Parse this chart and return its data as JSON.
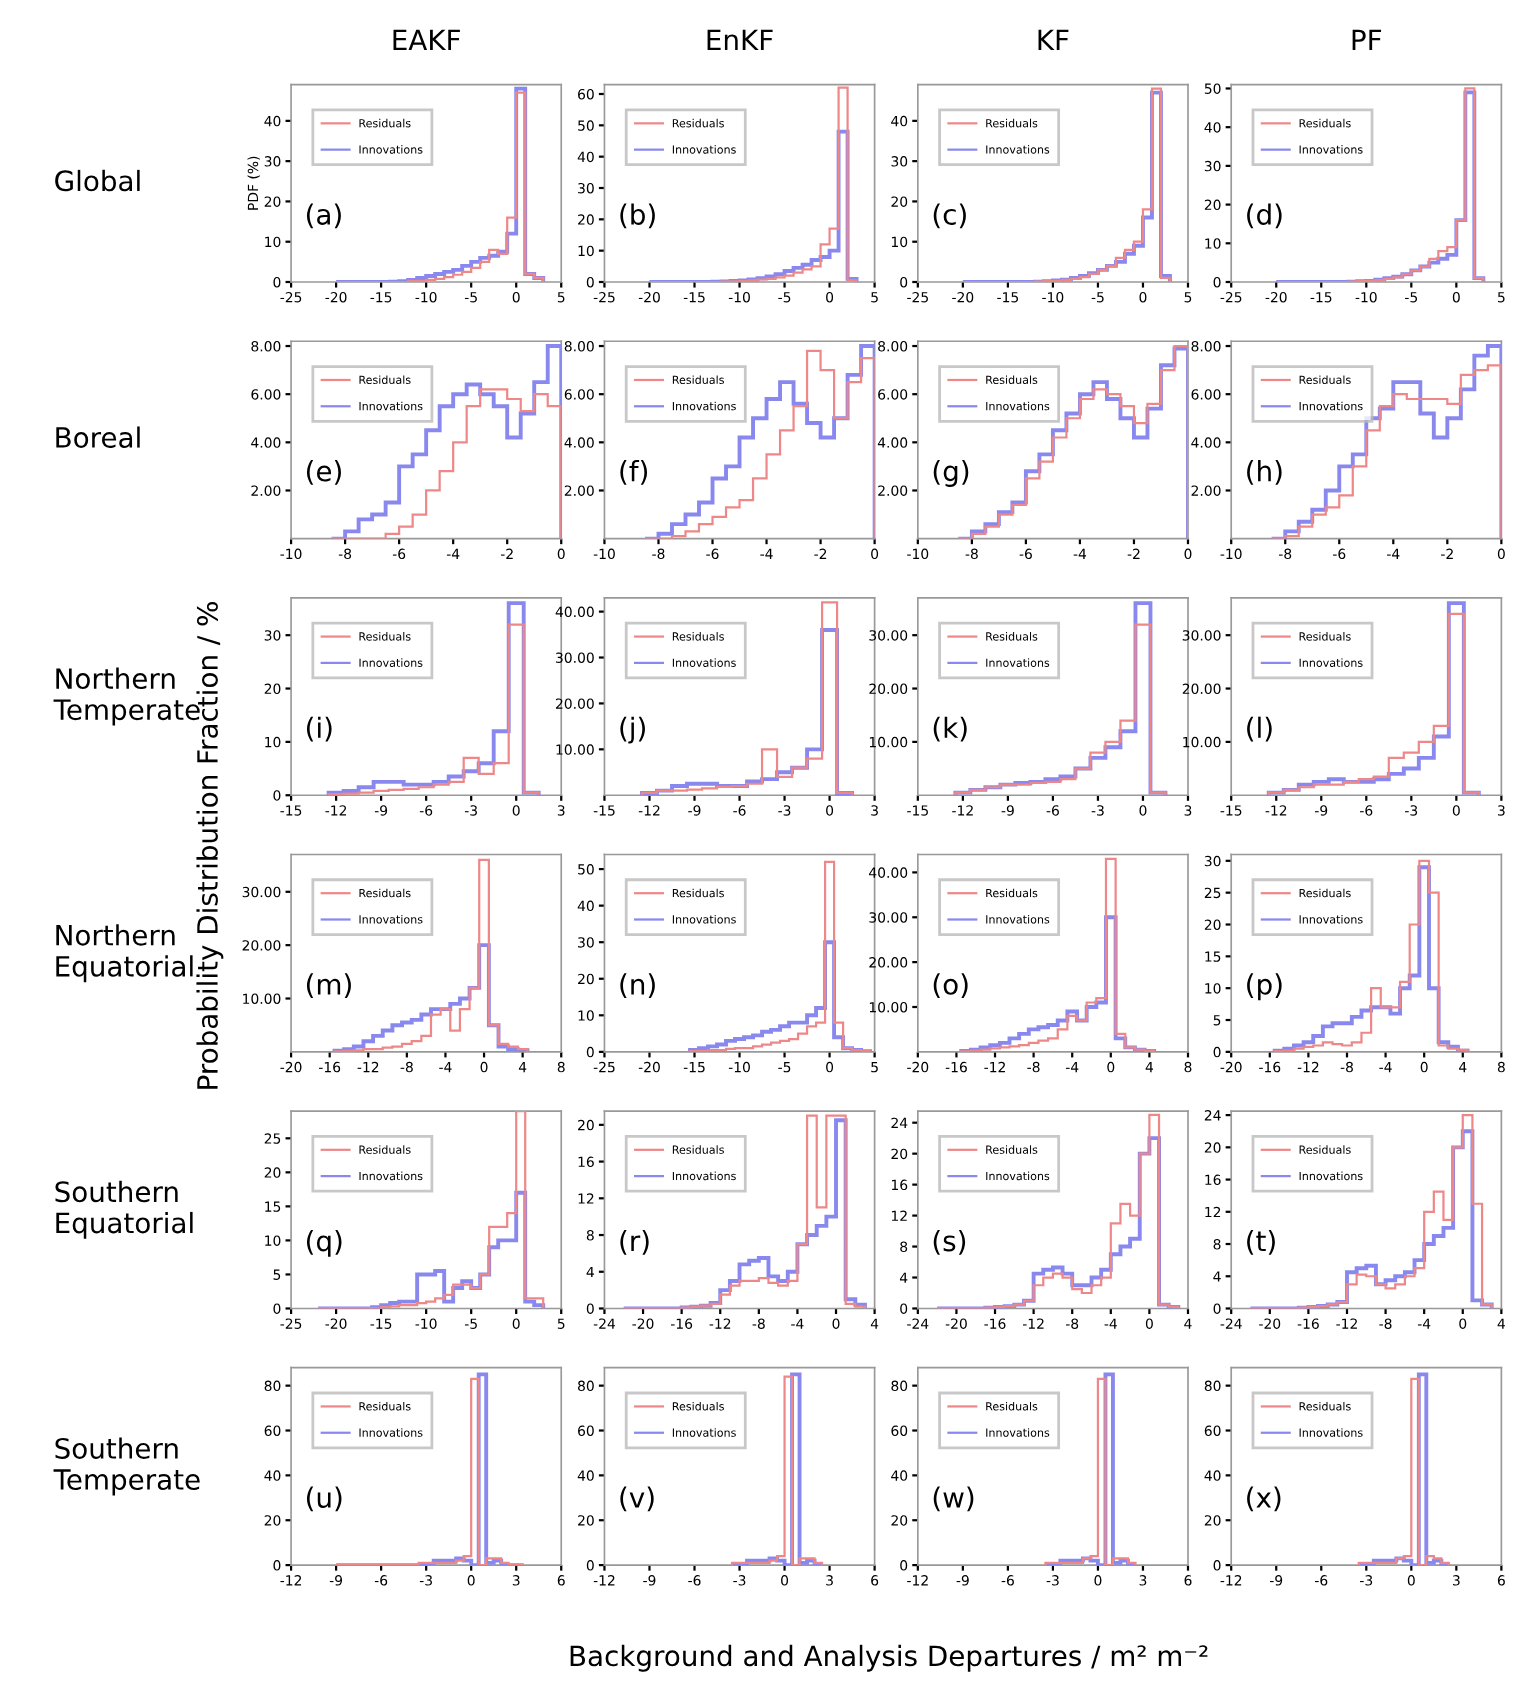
{
  "chart_data": [
    {
      "type": "histogram",
      "title": "EAKF",
      "ylabel": "PDF (%)",
      "legend": "top left",
      "annotations": [
        "(a)",
        "Global",
        "Probability Distribution Fraction / %",
        "Background and Analysis Departures / m² m⁻²"
      ],
      "xlim": [
        -25,
        5
      ],
      "xticks": [
        -25,
        -20,
        -15,
        -10,
        -5,
        0,
        5
      ],
      "ylim": [
        0,
        49
      ],
      "yticks": [
        0,
        10,
        20,
        30,
        40
      ],
      "bins": [
        -20,
        -19,
        -18,
        -17,
        -16,
        -15,
        -14,
        -13,
        -12,
        -11,
        -10,
        -9,
        -8,
        -7,
        -6,
        -5,
        -4,
        -3,
        -2,
        -1,
        0,
        1,
        2,
        3
      ],
      "series": [
        {
          "name": "Residuals",
          "color": "#ee8888",
          "values": [
            0,
            0,
            0,
            0,
            0,
            0,
            0,
            0,
            0.2,
            0.3,
            0.5,
            0.8,
            1.2,
            1.8,
            2.5,
            3.5,
            5,
            8,
            7,
            16,
            47,
            2,
            1
          ]
        },
        {
          "name": "Innovations",
          "color": "#8888ee",
          "values": [
            0,
            0,
            0,
            0,
            0,
            0,
            0.1,
            0.2,
            0.5,
            1,
            1.5,
            2,
            2.5,
            3,
            4,
            5,
            6,
            6.5,
            7.5,
            12,
            48,
            2,
            1
          ]
        }
      ]
    },
    {
      "type": "histogram",
      "title": "EnKF",
      "legend": "top left",
      "annotations": [
        "(b)"
      ],
      "xlim": [
        -25,
        5
      ],
      "xticks": [
        -25,
        -20,
        -15,
        -10,
        -5,
        0,
        5
      ],
      "ylim": [
        0,
        63
      ],
      "yticks": [
        0,
        10,
        20,
        30,
        40,
        50,
        60
      ],
      "bins": [
        -20,
        -19,
        -18,
        -17,
        -16,
        -15,
        -14,
        -13,
        -12,
        -11,
        -10,
        -9,
        -8,
        -7,
        -6,
        -5,
        -4,
        -3,
        -2,
        -1,
        0,
        1,
        2,
        3
      ],
      "series": [
        {
          "name": "Residuals",
          "color": "#ee8888",
          "values": [
            0,
            0,
            0,
            0,
            0,
            0,
            0,
            0,
            0.1,
            0.2,
            0.3,
            0.5,
            0.8,
            1,
            1.5,
            2,
            3,
            4,
            5,
            12,
            17,
            62,
            0.5
          ]
        },
        {
          "name": "Innovations",
          "color": "#8888ee",
          "values": [
            0,
            0,
            0,
            0,
            0,
            0,
            0,
            0.1,
            0.2,
            0.3,
            0.5,
            0.8,
            1.2,
            1.8,
            2.5,
            3.5,
            4.5,
            5.5,
            7,
            8,
            10,
            48,
            1
          ]
        }
      ]
    },
    {
      "type": "histogram",
      "title": "KF",
      "legend": "top left",
      "annotations": [
        "(c)"
      ],
      "xlim": [
        -25,
        5
      ],
      "xticks": [
        -25,
        -20,
        -15,
        -10,
        -5,
        0,
        5
      ],
      "ylim": [
        0,
        49
      ],
      "yticks": [
        0,
        10,
        20,
        30,
        40
      ],
      "bins": [
        -20,
        -19,
        -18,
        -17,
        -16,
        -15,
        -14,
        -13,
        -12,
        -11,
        -10,
        -9,
        -8,
        -7,
        -6,
        -5,
        -4,
        -3,
        -2,
        -1,
        0,
        1,
        2,
        3
      ],
      "series": [
        {
          "name": "Residuals",
          "color": "#ee8888",
          "values": [
            0,
            0,
            0,
            0,
            0,
            0,
            0,
            0,
            0.1,
            0.2,
            0.3,
            0.5,
            0.8,
            1.2,
            2,
            3,
            4,
            6,
            8,
            10,
            18,
            48,
            1
          ]
        },
        {
          "name": "Innovations",
          "color": "#8888ee",
          "values": [
            0,
            0,
            0,
            0,
            0,
            0,
            0,
            0,
            0.1,
            0.2,
            0.4,
            0.6,
            1,
            1.5,
            2.2,
            3,
            4,
            5,
            7,
            9,
            16,
            47,
            1.5
          ]
        }
      ]
    },
    {
      "type": "histogram",
      "title": "PF",
      "legend": "top left",
      "annotations": [
        "(d)"
      ],
      "xlim": [
        -25,
        5
      ],
      "xticks": [
        -25,
        -20,
        -15,
        -10,
        -5,
        0,
        5
      ],
      "ylim": [
        0,
        51
      ],
      "yticks": [
        0,
        10,
        20,
        30,
        40,
        50
      ],
      "bins": [
        -20,
        -19,
        -18,
        -17,
        -16,
        -15,
        -14,
        -13,
        -12,
        -11,
        -10,
        -9,
        -8,
        -7,
        -6,
        -5,
        -4,
        -3,
        -2,
        -1,
        0,
        1,
        2,
        3
      ],
      "series": [
        {
          "name": "Residuals",
          "color": "#ee8888",
          "values": [
            0,
            0,
            0,
            0,
            0,
            0,
            0,
            0,
            0.1,
            0.2,
            0.3,
            0.5,
            0.8,
            1.2,
            2,
            3,
            4,
            6,
            8,
            9,
            16,
            50,
            1
          ]
        },
        {
          "name": "Innovations",
          "color": "#8888ee",
          "values": [
            0,
            0,
            0,
            0,
            0,
            0,
            0,
            0,
            0.1,
            0.2,
            0.3,
            0.6,
            1,
            1.4,
            2,
            3,
            4,
            5,
            6,
            7,
            16,
            49,
            1
          ]
        }
      ]
    },
    {
      "type": "histogram",
      "legend": "top left",
      "annotations": [
        "(e)",
        "Boreal"
      ],
      "xlim": [
        -10,
        0
      ],
      "xticks": [
        -10,
        -8,
        -6,
        -4,
        -2,
        0
      ],
      "ylim": [
        0,
        8.2
      ],
      "yticks": [
        {
          "value": 2,
          "label": "2.00"
        },
        {
          "value": 4,
          "label": "4.00"
        },
        {
          "value": 6,
          "label": "6.00"
        },
        {
          "value": 8,
          "label": "8.00"
        }
      ],
      "bins": [
        -8.5,
        -8,
        -7.5,
        -7,
        -6.5,
        -6,
        -5.5,
        -5,
        -4.5,
        -4,
        -3.5,
        -3,
        -2.5,
        -2,
        -1.5,
        -1,
        -0.5,
        0
      ],
      "series": [
        {
          "name": "Residuals",
          "color": "#ee8888",
          "values": [
            0,
            0,
            0,
            0,
            0.2,
            0.5,
            1,
            2,
            2.8,
            4,
            5.5,
            6.2,
            6.2,
            5.8,
            5.3,
            6,
            5.5
          ]
        },
        {
          "name": "Innovations",
          "color": "#8888ee",
          "values": [
            0,
            0.3,
            0.8,
            1,
            1.5,
            3,
            3.5,
            4.5,
            5.5,
            6,
            6.4,
            6,
            5.5,
            4.2,
            5.2,
            6.5,
            8
          ]
        }
      ]
    },
    {
      "type": "histogram",
      "legend": "top left",
      "annotations": [
        "(f)"
      ],
      "xlim": [
        -10,
        0
      ],
      "xticks": [
        -10,
        -8,
        -6,
        -4,
        -2,
        0
      ],
      "ylim": [
        0,
        8.2
      ],
      "yticks": [
        {
          "value": 2,
          "label": "2.00"
        },
        {
          "value": 4,
          "label": "4.00"
        },
        {
          "value": 6,
          "label": "6.00"
        },
        {
          "value": 8,
          "label": "8.00"
        }
      ],
      "bins": [
        -8.5,
        -8,
        -7.5,
        -7,
        -6.5,
        -6,
        -5.5,
        -5,
        -4.5,
        -4,
        -3.5,
        -3,
        -2.5,
        -2,
        -1.5,
        -1,
        -0.5,
        0
      ],
      "series": [
        {
          "name": "Residuals",
          "color": "#ee8888",
          "values": [
            0,
            0,
            0.1,
            0.3,
            0.6,
            0.9,
            1.3,
            1.6,
            2.5,
            3.5,
            4.5,
            5.5,
            7.8,
            7,
            5,
            6.5,
            7.5
          ]
        },
        {
          "name": "Innovations",
          "color": "#8888ee",
          "values": [
            0,
            0.2,
            0.6,
            1,
            1.5,
            2.5,
            3,
            4.2,
            5,
            5.8,
            6.5,
            5.6,
            4.8,
            4.2,
            5,
            6.8,
            8
          ]
        }
      ]
    },
    {
      "type": "histogram",
      "legend": "top left",
      "annotations": [
        "(g)"
      ],
      "xlim": [
        -10,
        0
      ],
      "xticks": [
        -10,
        -8,
        -6,
        -4,
        -2,
        0
      ],
      "ylim": [
        0,
        8.2
      ],
      "yticks": [
        {
          "value": 2,
          "label": "2.00"
        },
        {
          "value": 4,
          "label": "4.00"
        },
        {
          "value": 6,
          "label": "6.00"
        },
        {
          "value": 8,
          "label": "8.00"
        }
      ],
      "bins": [
        -8.5,
        -8,
        -7.5,
        -7,
        -6.5,
        -6,
        -5.5,
        -5,
        -4.5,
        -4,
        -3.5,
        -3,
        -2.5,
        -2,
        -1.5,
        -1,
        -0.5,
        0
      ],
      "series": [
        {
          "name": "Residuals",
          "color": "#ee8888",
          "values": [
            0,
            0.2,
            0.5,
            1,
            1.4,
            2.5,
            3.2,
            4.2,
            5,
            5.8,
            6.2,
            6,
            5.5,
            4.8,
            5.6,
            7,
            8
          ]
        },
        {
          "name": "Innovations",
          "color": "#8888ee",
          "values": [
            0,
            0.3,
            0.6,
            1.1,
            1.5,
            2.8,
            3.5,
            4.5,
            5.2,
            6,
            6.5,
            5.8,
            5,
            4.2,
            5.4,
            7.2,
            7.9
          ]
        }
      ]
    },
    {
      "type": "histogram",
      "legend": "top left",
      "annotations": [
        "(h)"
      ],
      "xlim": [
        -10,
        0
      ],
      "xticks": [
        -10,
        -8,
        -6,
        -4,
        -2,
        0
      ],
      "ylim": [
        0,
        8.2
      ],
      "yticks": [
        {
          "value": 2,
          "label": "2.00"
        },
        {
          "value": 4,
          "label": "4.00"
        },
        {
          "value": 6,
          "label": "6.00"
        },
        {
          "value": 8,
          "label": "8.00"
        }
      ],
      "bins": [
        -8.5,
        -8,
        -7.5,
        -7,
        -6.5,
        -6,
        -5.5,
        -5,
        -4.5,
        -4,
        -3.5,
        -3,
        -2.5,
        -2,
        -1.5,
        -1,
        -0.5,
        0
      ],
      "series": [
        {
          "name": "Residuals",
          "color": "#ee8888",
          "values": [
            0,
            0.1,
            0.5,
            1,
            1.3,
            1.8,
            3,
            4.5,
            5.5,
            6,
            5.8,
            5.8,
            5.8,
            5.6,
            6.8,
            7,
            7.2
          ]
        },
        {
          "name": "Innovations",
          "color": "#8888ee",
          "values": [
            0,
            0.3,
            0.7,
            1.2,
            2,
            3,
            3.5,
            5,
            5.4,
            6.5,
            6.5,
            5.2,
            4.2,
            5,
            6.2,
            7.6,
            8
          ]
        }
      ]
    },
    {
      "type": "histogram",
      "legend": "top left",
      "annotations": [
        "(i)",
        "Northern\nTemperate"
      ],
      "xlim": [
        -15,
        3
      ],
      "xticks": [
        -15,
        -12,
        -9,
        -6,
        -3,
        0,
        3
      ],
      "ylim": [
        0,
        37
      ],
      "yticks": [
        0,
        10,
        20,
        30
      ],
      "bins": [
        -12.5,
        -11.5,
        -10.5,
        -9.5,
        -8.5,
        -7.5,
        -6.5,
        -5.5,
        -4.5,
        -3.5,
        -2.5,
        -1.5,
        -0.5,
        0.5,
        1.5
      ],
      "series": [
        {
          "name": "Residuals",
          "color": "#ee8888",
          "values": [
            0.2,
            0.3,
            0.5,
            0.8,
            1,
            1.2,
            1.5,
            2,
            2.5,
            7,
            4,
            6,
            32,
            0.5
          ]
        },
        {
          "name": "Innovations",
          "color": "#8888ee",
          "values": [
            0.5,
            0.8,
            1.5,
            2.5,
            2.5,
            2,
            2,
            2.5,
            3.5,
            4.5,
            6,
            12,
            36,
            0.5
          ]
        }
      ]
    },
    {
      "type": "histogram",
      "legend": "top left",
      "annotations": [
        "(j)"
      ],
      "xlim": [
        -15,
        3
      ],
      "xticks": [
        -15,
        -12,
        -9,
        -6,
        -3,
        0,
        3
      ],
      "ylim": [
        0,
        43
      ],
      "yticks": [
        {
          "value": 10,
          "label": "10.00"
        },
        {
          "value": 20,
          "label": "20.00"
        },
        {
          "value": 30,
          "label": "30.00"
        },
        {
          "value": 40,
          "label": "40.00"
        }
      ],
      "bins": [
        -12.5,
        -11.5,
        -10.5,
        -9.5,
        -8.5,
        -7.5,
        -6.5,
        -5.5,
        -4.5,
        -3.5,
        -2.5,
        -1.5,
        -0.5,
        0.5,
        1.5
      ],
      "series": [
        {
          "name": "Residuals",
          "color": "#ee8888",
          "values": [
            0.5,
            1,
            1,
            1.2,
            1.5,
            1.8,
            2,
            2.5,
            10,
            4,
            6,
            8,
            42,
            0.5
          ]
        },
        {
          "name": "Innovations",
          "color": "#8888ee",
          "values": [
            0.5,
            1,
            2,
            2.5,
            2.5,
            2,
            2,
            3,
            3.5,
            5,
            6,
            10,
            36,
            0.5
          ]
        }
      ]
    },
    {
      "type": "histogram",
      "legend": "top left",
      "annotations": [
        "(k)"
      ],
      "xlim": [
        -15,
        3
      ],
      "xticks": [
        -15,
        -12,
        -9,
        -6,
        -3,
        0,
        3
      ],
      "ylim": [
        0,
        37
      ],
      "yticks": [
        {
          "value": 10,
          "label": "10.00"
        },
        {
          "value": 20,
          "label": "20.00"
        },
        {
          "value": 30,
          "label": "30.00"
        }
      ],
      "bins": [
        -12.5,
        -11.5,
        -10.5,
        -9.5,
        -8.5,
        -7.5,
        -6.5,
        -5.5,
        -4.5,
        -3.5,
        -2.5,
        -1.5,
        -0.5,
        0.5,
        1.5
      ],
      "series": [
        {
          "name": "Residuals",
          "color": "#ee8888",
          "values": [
            0.5,
            1,
            1.5,
            2,
            2,
            2.3,
            2.5,
            3,
            5,
            8,
            10,
            14,
            32,
            0.5
          ]
        },
        {
          "name": "Innovations",
          "color": "#8888ee",
          "values": [
            0.5,
            1,
            1.5,
            2,
            2.3,
            2.5,
            3,
            3.5,
            5,
            7,
            9,
            12,
            36,
            0.5
          ]
        }
      ]
    },
    {
      "type": "histogram",
      "legend": "top left",
      "annotations": [
        "(l)"
      ],
      "xlim": [
        -15,
        3
      ],
      "xticks": [
        -15,
        -12,
        -9,
        -6,
        -3,
        0,
        3
      ],
      "ylim": [
        0,
        37
      ],
      "yticks": [
        {
          "value": 10,
          "label": "10.00"
        },
        {
          "value": 20,
          "label": "20.00"
        },
        {
          "value": 30,
          "label": "30.00"
        }
      ],
      "bins": [
        -12.5,
        -11.5,
        -10.5,
        -9.5,
        -8.5,
        -7.5,
        -6.5,
        -5.5,
        -4.5,
        -3.5,
        -2.5,
        -1.5,
        -0.5,
        0.5,
        1.5
      ],
      "series": [
        {
          "name": "Residuals",
          "color": "#ee8888",
          "values": [
            0.5,
            1,
            1.5,
            2,
            2,
            2.5,
            3,
            3.5,
            7,
            8,
            10,
            13,
            34,
            0.5
          ]
        },
        {
          "name": "Innovations",
          "color": "#8888ee",
          "values": [
            0.5,
            1,
            2,
            2.5,
            3,
            2.5,
            2.5,
            3,
            4,
            5,
            7,
            11,
            36,
            0.5
          ]
        }
      ]
    },
    {
      "type": "histogram",
      "legend": "top left",
      "annotations": [
        "(m)",
        "Northern\nEquatorial"
      ],
      "xlim": [
        -20,
        8
      ],
      "xticks": [
        -20,
        -16,
        -12,
        -8,
        -4,
        0,
        4,
        8
      ],
      "ylim": [
        0,
        37
      ],
      "yticks": [
        {
          "value": 10,
          "label": "10.00"
        },
        {
          "value": 20,
          "label": "20.00"
        },
        {
          "value": 30,
          "label": "30.00"
        }
      ],
      "bins": [
        -15.5,
        -14.5,
        -13.5,
        -12.5,
        -11.5,
        -10.5,
        -9.5,
        -8.5,
        -7.5,
        -6.5,
        -5.5,
        -4.5,
        -3.5,
        -2.5,
        -1.5,
        -0.5,
        0.5,
        1.5,
        2.5,
        3.5,
        4.5
      ],
      "series": [
        {
          "name": "Residuals",
          "color": "#ee8888",
          "values": [
            0.1,
            0.2,
            0.3,
            0.5,
            0.5,
            0.8,
            1,
            1.5,
            2,
            3,
            7,
            8,
            4,
            8,
            12,
            36,
            5,
            1.5,
            1,
            0.5
          ]
        },
        {
          "name": "Innovations",
          "color": "#8888ee",
          "values": [
            0.2,
            0.5,
            1,
            2,
            3,
            4,
            5,
            5.5,
            6,
            7,
            8,
            8,
            9,
            10,
            12,
            20,
            5,
            1,
            0.5,
            0.3
          ]
        }
      ]
    },
    {
      "type": "histogram",
      "legend": "top left",
      "annotations": [
        "(n)"
      ],
      "xlim": [
        -25,
        5
      ],
      "xticks": [
        -25,
        -20,
        -15,
        -10,
        -5,
        0,
        5
      ],
      "ylim": [
        0,
        54
      ],
      "yticks": [
        0,
        10,
        20,
        30,
        40,
        50
      ],
      "bins": [
        -15.5,
        -14.5,
        -13.5,
        -12.5,
        -11.5,
        -10.5,
        -9.5,
        -8.5,
        -7.5,
        -6.5,
        -5.5,
        -4.5,
        -3.5,
        -2.5,
        -1.5,
        -0.5,
        0.5,
        1.5,
        2.5,
        3.5,
        4.5
      ],
      "series": [
        {
          "name": "Residuals",
          "color": "#ee8888",
          "values": [
            0.2,
            0.3,
            0.5,
            0.5,
            0.8,
            1,
            1,
            1.5,
            2,
            2.5,
            3,
            3.5,
            5,
            7,
            8,
            52,
            8,
            1,
            0.5,
            0.2
          ]
        },
        {
          "name": "Innovations",
          "color": "#8888ee",
          "values": [
            0.5,
            1,
            1.5,
            2,
            3,
            3.5,
            4,
            4.5,
            5.5,
            6,
            7,
            8,
            8,
            10,
            12,
            30,
            4,
            1,
            0.5,
            0.2
          ]
        }
      ]
    },
    {
      "type": "histogram",
      "legend": "top left",
      "annotations": [
        "(o)"
      ],
      "xlim": [
        -20,
        8
      ],
      "xticks": [
        -20,
        -16,
        -12,
        -8,
        -4,
        0,
        4,
        8
      ],
      "ylim": [
        0,
        44
      ],
      "yticks": [
        {
          "value": 10,
          "label": "10.00"
        },
        {
          "value": 20,
          "label": "20.00"
        },
        {
          "value": 30,
          "label": "30.00"
        },
        {
          "value": 40,
          "label": "40.00"
        }
      ],
      "bins": [
        -15.5,
        -14.5,
        -13.5,
        -12.5,
        -11.5,
        -10.5,
        -9.5,
        -8.5,
        -7.5,
        -6.5,
        -5.5,
        -4.5,
        -3.5,
        -2.5,
        -1.5,
        -0.5,
        0.5,
        1.5,
        2.5,
        3.5,
        4.5
      ],
      "series": [
        {
          "name": "Residuals",
          "color": "#ee8888",
          "values": [
            0.1,
            0.3,
            0.5,
            0.8,
            1,
            1.2,
            1.5,
            2,
            2.5,
            3,
            5,
            8,
            7,
            11,
            12,
            43,
            4,
            1,
            0.5,
            0.2
          ]
        },
        {
          "name": "Innovations",
          "color": "#8888ee",
          "values": [
            0.2,
            0.5,
            1,
            1.5,
            2,
            3,
            4,
            5,
            5.5,
            6,
            7,
            9,
            7,
            10,
            11,
            30,
            3,
            1,
            0.5,
            0.2
          ]
        }
      ]
    },
    {
      "type": "histogram",
      "legend": "top left",
      "annotations": [
        "(p)"
      ],
      "xlim": [
        -20,
        8
      ],
      "xticks": [
        -20,
        -16,
        -12,
        -8,
        -4,
        0,
        4,
        8
      ],
      "ylim": [
        0,
        31
      ],
      "yticks": [
        0,
        5,
        10,
        15,
        20,
        25,
        30
      ],
      "bins": [
        -15.5,
        -14.5,
        -13.5,
        -12.5,
        -11.5,
        -10.5,
        -9.5,
        -8.5,
        -7.5,
        -6.5,
        -5.5,
        -4.5,
        -3.5,
        -2.5,
        -1.5,
        -0.5,
        0.5,
        1.5,
        2.5,
        3.5,
        4.5
      ],
      "series": [
        {
          "name": "Residuals",
          "color": "#ee8888",
          "values": [
            0.1,
            0.2,
            0.5,
            0.8,
            1,
            1.5,
            1.2,
            1,
            1.5,
            3,
            10,
            7,
            7,
            11,
            20,
            30,
            25,
            1,
            0.5,
            0.3
          ]
        },
        {
          "name": "Innovations",
          "color": "#8888ee",
          "values": [
            0.2,
            0.5,
            1,
            1.5,
            2.5,
            4,
            4.5,
            4.5,
            5.5,
            6.5,
            7,
            7,
            6,
            10,
            12,
            29,
            10,
            1.5,
            0.8,
            0.2
          ]
        }
      ]
    },
    {
      "type": "histogram",
      "legend": "top left",
      "annotations": [
        "(q)",
        "Southern\nEquatorial"
      ],
      "xlim": [
        -25,
        5
      ],
      "xticks": [
        -25,
        -20,
        -15,
        -10,
        -5,
        0,
        5
      ],
      "ylim": [
        0,
        29
      ],
      "yticks": [
        0,
        5,
        10,
        15,
        20,
        25
      ],
      "bins": [
        -22,
        -21,
        -20,
        -19,
        -18,
        -17,
        -16,
        -15,
        -14,
        -13,
        -12,
        -11,
        -10,
        -9,
        -8,
        -7,
        -6,
        -5,
        -4,
        -3,
        -2,
        -1,
        0,
        1,
        2,
        3
      ],
      "series": [
        {
          "name": "Residuals",
          "color": "#ee8888",
          "values": [
            0,
            0,
            0,
            0,
            0,
            0,
            0,
            0.2,
            0.3,
            0.5,
            0.5,
            0.8,
            1,
            1.5,
            2,
            3.5,
            3.5,
            3,
            5,
            12,
            12,
            14,
            29,
            1.5,
            1.5
          ]
        },
        {
          "name": "Innovations",
          "color": "#8888ee",
          "values": [
            0,
            0,
            0,
            0,
            0,
            0,
            0.2,
            0.5,
            0.8,
            1,
            1,
            5,
            5,
            5.5,
            1,
            3,
            4,
            3,
            5,
            9,
            10,
            10,
            17,
            1,
            0.5
          ]
        }
      ]
    },
    {
      "type": "histogram",
      "legend": "top left",
      "annotations": [
        "(r)"
      ],
      "xlim": [
        -24,
        4
      ],
      "xticks": [
        -24,
        -20,
        -16,
        -12,
        -8,
        -4,
        0,
        4
      ],
      "ylim": [
        0,
        21.5
      ],
      "yticks": [
        0,
        4,
        8,
        12,
        16,
        20
      ],
      "bins": [
        -22,
        -21,
        -20,
        -19,
        -18,
        -17,
        -16,
        -15,
        -14,
        -13,
        -12,
        -11,
        -10,
        -9,
        -8,
        -7,
        -6,
        -5,
        -4,
        -3,
        -2,
        -1,
        0,
        1,
        2,
        3
      ],
      "series": [
        {
          "name": "Residuals",
          "color": "#ee8888",
          "values": [
            0,
            0,
            0,
            0,
            0,
            0,
            0.1,
            0.2,
            0.3,
            0.5,
            1.5,
            2.5,
            3,
            3,
            3.3,
            2.8,
            2.5,
            3,
            7,
            21,
            11,
            21,
            21,
            0.5,
            0.2
          ]
        },
        {
          "name": "Innovations",
          "color": "#8888ee",
          "values": [
            0,
            0,
            0,
            0,
            0,
            0,
            0.1,
            0.2,
            0.3,
            0.6,
            2,
            3,
            4.8,
            5.2,
            5.5,
            3.5,
            3,
            4,
            7,
            8,
            9,
            10,
            20.5,
            1,
            0.4
          ]
        }
      ]
    },
    {
      "type": "histogram",
      "legend": "top left",
      "annotations": [
        "(s)"
      ],
      "xlim": [
        -24,
        4
      ],
      "xticks": [
        -24,
        -20,
        -16,
        -12,
        -8,
        -4,
        0,
        4
      ],
      "ylim": [
        0,
        25.5
      ],
      "yticks": [
        0,
        4,
        8,
        12,
        16,
        20,
        24
      ],
      "bins": [
        -22,
        -21,
        -20,
        -19,
        -18,
        -17,
        -16,
        -15,
        -14,
        -13,
        -12,
        -11,
        -10,
        -9,
        -8,
        -7,
        -6,
        -5,
        -4,
        -3,
        -2,
        -1,
        0,
        1,
        2,
        3
      ],
      "series": [
        {
          "name": "Residuals",
          "color": "#ee8888",
          "values": [
            0,
            0,
            0,
            0,
            0,
            0.1,
            0.2,
            0.3,
            0.5,
            1,
            3,
            4,
            4.5,
            4,
            2.5,
            2,
            3,
            4,
            11,
            13.5,
            12,
            20,
            25,
            0.5,
            0.2
          ]
        },
        {
          "name": "Innovations",
          "color": "#8888ee",
          "values": [
            0,
            0,
            0,
            0,
            0,
            0.1,
            0.2,
            0.3,
            0.5,
            1,
            4.5,
            5,
            5.3,
            4.5,
            3,
            3,
            4,
            5,
            7,
            8,
            9,
            20,
            22,
            0.5,
            0.2
          ]
        }
      ]
    },
    {
      "type": "histogram",
      "legend": "top left",
      "annotations": [
        "(t)"
      ],
      "xlim": [
        -24,
        4
      ],
      "xticks": [
        -24,
        -20,
        -16,
        -12,
        -8,
        -4,
        0,
        4
      ],
      "ylim": [
        0,
        24.5
      ],
      "yticks": [
        0,
        4,
        8,
        12,
        16,
        20,
        24
      ],
      "bins": [
        -22,
        -21,
        -20,
        -19,
        -18,
        -17,
        -16,
        -15,
        -14,
        -13,
        -12,
        -11,
        -10,
        -9,
        -8,
        -7,
        -6,
        -5,
        -4,
        -3,
        -2,
        -1,
        0,
        1,
        2,
        3
      ],
      "series": [
        {
          "name": "Residuals",
          "color": "#ee8888",
          "values": [
            0,
            0,
            0,
            0,
            0,
            0.1,
            0.2,
            0.3,
            0.5,
            0.8,
            3,
            4.2,
            4,
            3,
            2.5,
            3,
            4,
            5,
            12,
            14.5,
            11,
            20,
            24,
            13,
            0.5
          ]
        },
        {
          "name": "Innovations",
          "color": "#8888ee",
          "values": [
            0,
            0,
            0,
            0,
            0,
            0.1,
            0.2,
            0.3,
            0.5,
            0.8,
            4.5,
            5,
            5.3,
            3,
            3.5,
            4,
            4.5,
            6,
            8,
            9,
            10,
            20,
            22,
            1,
            0.5
          ]
        }
      ]
    },
    {
      "type": "histogram",
      "legend": "top left",
      "annotations": [
        "(u)",
        "Southern\nTemperate"
      ],
      "xlim": [
        -12,
        6
      ],
      "xticks": [
        -12,
        -9,
        -6,
        -3,
        0,
        3,
        6
      ],
      "ylim": [
        0,
        88
      ],
      "yticks": [
        0,
        20,
        40,
        60,
        80
      ],
      "bins": [
        -9,
        -8.5,
        -8,
        -7.5,
        -7,
        -6.5,
        -6,
        -5.5,
        -5,
        -4.5,
        -4,
        -3.5,
        -3,
        -2.5,
        -2,
        -1.5,
        -1,
        -0.5,
        0,
        0.5,
        1,
        1.5,
        2,
        2.5,
        3,
        3.5
      ],
      "series": [
        {
          "name": "Residuals",
          "color": "#ee8888",
          "values": [
            0,
            0,
            0,
            0,
            0,
            0,
            0,
            0,
            0,
            0,
            0,
            1,
            1,
            1,
            1,
            1,
            2,
            4,
            83,
            0,
            3,
            3,
            1,
            0,
            0
          ]
        },
        {
          "name": "Innovations",
          "color": "#8888ee",
          "values": [
            0,
            0,
            0,
            0,
            0,
            0,
            0,
            0,
            0,
            0,
            0,
            0,
            0,
            2,
            2,
            2,
            3,
            2,
            0,
            85,
            1,
            2,
            0,
            0,
            0
          ]
        }
      ]
    },
    {
      "type": "histogram",
      "legend": "top left",
      "annotations": [
        "(v)"
      ],
      "xlim": [
        -12,
        6
      ],
      "xticks": [
        -12,
        -9,
        -6,
        -3,
        0,
        3,
        6
      ],
      "ylim": [
        0,
        88
      ],
      "yticks": [
        0,
        20,
        40,
        60,
        80
      ],
      "bins": [
        -3.5,
        -3,
        -2.5,
        -2,
        -1.5,
        -1,
        -0.5,
        0,
        0.5,
        1,
        1.5,
        2,
        2.5
      ],
      "series": [
        {
          "name": "Residuals",
          "color": "#ee8888",
          "values": [
            1,
            1,
            1,
            1,
            1,
            2,
            4,
            84,
            0,
            3,
            3,
            1
          ]
        },
        {
          "name": "Innovations",
          "color": "#8888ee",
          "values": [
            0,
            0,
            2,
            2,
            2,
            3,
            2,
            0,
            85,
            1,
            2,
            0
          ]
        }
      ]
    },
    {
      "type": "histogram",
      "legend": "top left",
      "annotations": [
        "(w)"
      ],
      "xlim": [
        -12,
        6
      ],
      "xticks": [
        -12,
        -9,
        -6,
        -3,
        0,
        3,
        6
      ],
      "ylim": [
        0,
        88
      ],
      "yticks": [
        0,
        20,
        40,
        60,
        80
      ],
      "bins": [
        -3.5,
        -3,
        -2.5,
        -2,
        -1.5,
        -1,
        -0.5,
        0,
        0.5,
        1,
        1.5,
        2,
        2.5
      ],
      "series": [
        {
          "name": "Residuals",
          "color": "#ee8888",
          "values": [
            1,
            1,
            1,
            1,
            1,
            3,
            4,
            83,
            0,
            3,
            3,
            1
          ]
        },
        {
          "name": "Innovations",
          "color": "#8888ee",
          "values": [
            0,
            0,
            2,
            2,
            2,
            3,
            2,
            0,
            85,
            1,
            2,
            0
          ]
        }
      ]
    },
    {
      "type": "histogram",
      "legend": "top left",
      "annotations": [
        "(x)"
      ],
      "xlim": [
        -12,
        6
      ],
      "xticks": [
        -12,
        -9,
        -6,
        -3,
        0,
        3,
        6
      ],
      "ylim": [
        0,
        88
      ],
      "yticks": [
        0,
        20,
        40,
        60,
        80
      ],
      "bins": [
        -3.5,
        -3,
        -2.5,
        -2,
        -1.5,
        -1,
        -0.5,
        0,
        0.5,
        1,
        1.5,
        2,
        2.5
      ],
      "series": [
        {
          "name": "Residuals",
          "color": "#ee8888",
          "values": [
            1,
            1,
            1,
            1,
            1,
            3,
            4,
            83,
            0,
            4,
            3,
            1
          ]
        },
        {
          "name": "Innovations",
          "color": "#8888ee",
          "values": [
            0,
            0,
            2,
            2,
            2,
            3,
            2,
            0,
            85,
            1,
            2,
            0
          ]
        }
      ]
    }
  ]
}
